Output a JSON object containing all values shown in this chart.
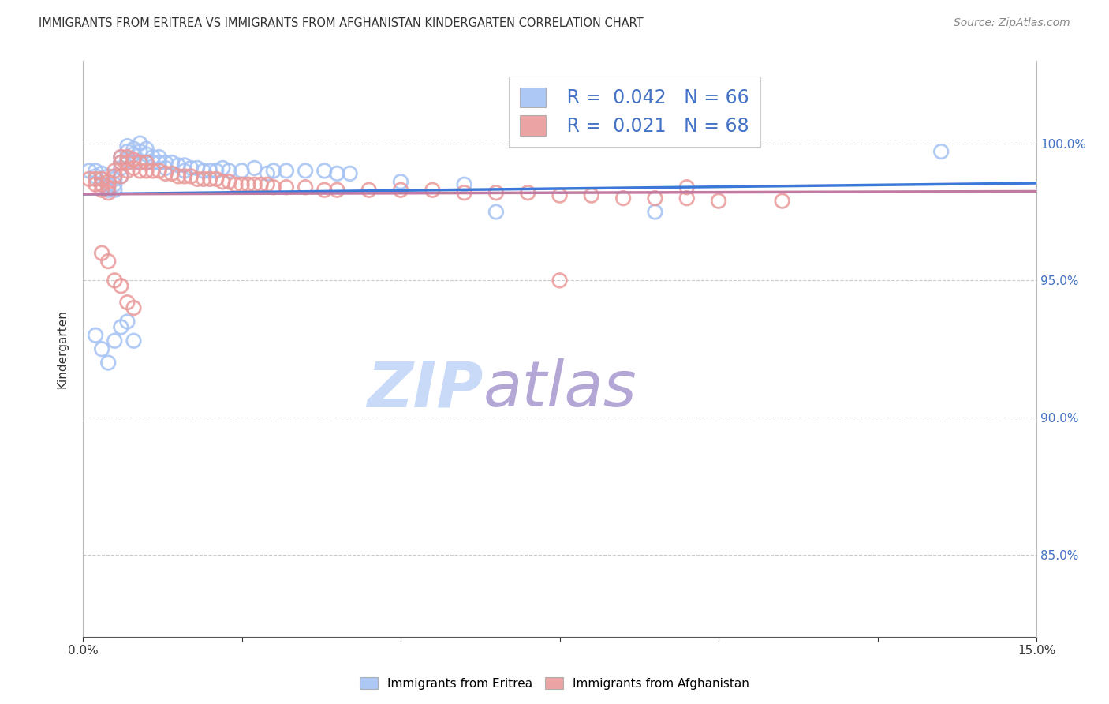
{
  "title": "IMMIGRANTS FROM ERITREA VS IMMIGRANTS FROM AFGHANISTAN KINDERGARTEN CORRELATION CHART",
  "source": "Source: ZipAtlas.com",
  "ylabel": "Kindergarten",
  "ytick_labels": [
    "85.0%",
    "90.0%",
    "95.0%",
    "100.0%"
  ],
  "ytick_values": [
    0.85,
    0.9,
    0.95,
    1.0
  ],
  "xlim": [
    0.0,
    0.15
  ],
  "ylim": [
    0.82,
    1.03
  ],
  "blue_color": "#a4c2f4",
  "pink_color": "#ea9999",
  "blue_line_color": "#3c78d8",
  "pink_line_color": "#c27ba0",
  "watermark_zip_color": "#c9daf8",
  "watermark_atlas_color": "#b4a7d6",
  "blue_scatter_x": [
    0.001,
    0.002,
    0.002,
    0.003,
    0.003,
    0.003,
    0.004,
    0.004,
    0.004,
    0.005,
    0.005,
    0.005,
    0.006,
    0.006,
    0.006,
    0.006,
    0.007,
    0.007,
    0.007,
    0.008,
    0.008,
    0.008,
    0.009,
    0.009,
    0.009,
    0.01,
    0.01,
    0.01,
    0.011,
    0.011,
    0.012,
    0.012,
    0.013,
    0.013,
    0.014,
    0.015,
    0.016,
    0.016,
    0.017,
    0.018,
    0.019,
    0.02,
    0.021,
    0.022,
    0.023,
    0.025,
    0.027,
    0.029,
    0.03,
    0.032,
    0.035,
    0.038,
    0.04,
    0.042,
    0.05,
    0.06,
    0.065,
    0.09,
    0.135,
    0.002,
    0.003,
    0.004,
    0.005,
    0.006,
    0.007,
    0.008
  ],
  "blue_scatter_y": [
    0.99,
    0.99,
    0.988,
    0.989,
    0.987,
    0.985,
    0.988,
    0.985,
    0.983,
    0.987,
    0.985,
    0.983,
    0.995,
    0.993,
    0.991,
    0.988,
    0.999,
    0.997,
    0.994,
    0.998,
    0.996,
    0.993,
    1.0,
    0.997,
    0.993,
    0.998,
    0.996,
    0.993,
    0.995,
    0.993,
    0.995,
    0.993,
    0.993,
    0.991,
    0.993,
    0.992,
    0.992,
    0.99,
    0.991,
    0.991,
    0.99,
    0.99,
    0.99,
    0.991,
    0.99,
    0.99,
    0.991,
    0.989,
    0.99,
    0.99,
    0.99,
    0.99,
    0.989,
    0.989,
    0.986,
    0.985,
    0.975,
    0.975,
    0.997,
    0.93,
    0.925,
    0.92,
    0.928,
    0.933,
    0.935,
    0.928
  ],
  "pink_scatter_x": [
    0.001,
    0.002,
    0.002,
    0.003,
    0.003,
    0.003,
    0.004,
    0.004,
    0.004,
    0.005,
    0.005,
    0.006,
    0.006,
    0.006,
    0.007,
    0.007,
    0.007,
    0.008,
    0.008,
    0.009,
    0.009,
    0.01,
    0.01,
    0.011,
    0.012,
    0.013,
    0.014,
    0.015,
    0.016,
    0.017,
    0.018,
    0.019,
    0.02,
    0.021,
    0.022,
    0.023,
    0.024,
    0.025,
    0.026,
    0.027,
    0.028,
    0.029,
    0.03,
    0.032,
    0.035,
    0.038,
    0.04,
    0.045,
    0.05,
    0.055,
    0.06,
    0.065,
    0.07,
    0.075,
    0.08,
    0.085,
    0.09,
    0.095,
    0.1,
    0.11,
    0.003,
    0.004,
    0.005,
    0.006,
    0.007,
    0.008,
    0.075,
    0.095
  ],
  "pink_scatter_y": [
    0.987,
    0.987,
    0.985,
    0.987,
    0.985,
    0.983,
    0.986,
    0.984,
    0.982,
    0.99,
    0.988,
    0.995,
    0.993,
    0.988,
    0.995,
    0.993,
    0.99,
    0.994,
    0.991,
    0.993,
    0.99,
    0.993,
    0.99,
    0.99,
    0.99,
    0.989,
    0.989,
    0.988,
    0.988,
    0.988,
    0.987,
    0.987,
    0.987,
    0.987,
    0.986,
    0.986,
    0.985,
    0.985,
    0.985,
    0.985,
    0.985,
    0.985,
    0.984,
    0.984,
    0.984,
    0.983,
    0.983,
    0.983,
    0.983,
    0.983,
    0.982,
    0.982,
    0.982,
    0.981,
    0.981,
    0.98,
    0.98,
    0.98,
    0.979,
    0.979,
    0.96,
    0.957,
    0.95,
    0.948,
    0.942,
    0.94,
    0.95,
    0.984
  ],
  "blue_trendline_x": [
    0.0,
    0.15
  ],
  "blue_trendline_y": [
    0.9815,
    0.9855
  ],
  "pink_trendline_x": [
    0.0,
    0.15
  ],
  "pink_trendline_y": [
    0.9815,
    0.9825
  ]
}
